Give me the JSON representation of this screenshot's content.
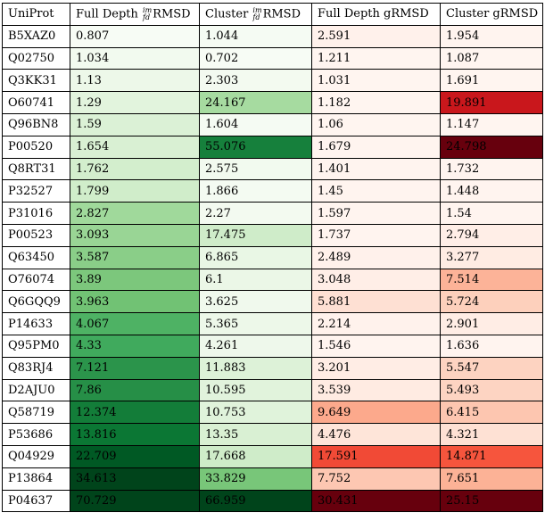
{
  "table": {
    "headers": [
      {
        "pre": "UniProt",
        "sup": "",
        "sub": "",
        "post": ""
      },
      {
        "pre": "Full Depth ",
        "sup": "im",
        "sub": "fd",
        "post": "RMSD"
      },
      {
        "pre": "Cluster ",
        "sup": "im",
        "sub": "fd",
        "post": "RMSD"
      },
      {
        "pre": "Full Depth gRMSD",
        "sup": "",
        "sub": "",
        "post": ""
      },
      {
        "pre": "Cluster gRMSD",
        "sup": "",
        "sub": "",
        "post": ""
      }
    ],
    "rows": [
      {
        "id": "B5XAZ0",
        "v": [
          "0.807",
          "1.044",
          "2.591",
          "1.954"
        ],
        "c": [
          "#f7fcf5",
          "#f5fbf3",
          "#fff1eb",
          "#fff4ef"
        ]
      },
      {
        "id": "Q02750",
        "v": [
          "1.034",
          "0.702",
          "1.211",
          "1.087"
        ],
        "c": [
          "#f2faef",
          "#f7fcf5",
          "#fff5f0",
          "#fff5f0"
        ]
      },
      {
        "id": "Q3KK31",
        "v": [
          "1.13",
          "2.303",
          "1.031",
          "1.691"
        ],
        "c": [
          "#edf8e9",
          "#f3faf0",
          "#fff5f0",
          "#fff5f0"
        ]
      },
      {
        "id": "O60741",
        "v": [
          "1.29",
          "24.167",
          "1.182",
          "19.891"
        ],
        "c": [
          "#e2f4dd",
          "#a6dba0",
          "#fff5f0",
          "#c9171c"
        ]
      },
      {
        "id": "Q96BN8",
        "v": [
          "1.59",
          "1.604",
          "1.06",
          "1.147"
        ],
        "c": [
          "#dbf1d6",
          "#f5fbf3",
          "#fff5f0",
          "#fff5f0"
        ]
      },
      {
        "id": "P00520",
        "v": [
          "1.654",
          "55.076",
          "1.679",
          "24.798"
        ],
        "c": [
          "#d9f0d3",
          "#16803c",
          "#fff4ef",
          "#67000d"
        ]
      },
      {
        "id": "Q8RT31",
        "v": [
          "1.762",
          "2.575",
          "1.401",
          "1.732"
        ],
        "c": [
          "#d3eecd",
          "#f2faef",
          "#fff4ef",
          "#fff4ef"
        ]
      },
      {
        "id": "P32527",
        "v": [
          "1.799",
          "1.866",
          "1.45",
          "1.448"
        ],
        "c": [
          "#d0edca",
          "#f4fbf2",
          "#fff4ef",
          "#fff4ef"
        ]
      },
      {
        "id": "P31016",
        "v": [
          "2.827",
          "2.27",
          "1.597",
          "1.54"
        ],
        "c": [
          "#a0d99b",
          "#f3faf0",
          "#fff4ef",
          "#fff4ef"
        ]
      },
      {
        "id": "P00523",
        "v": [
          "3.093",
          "17.475",
          "1.737",
          "2.794"
        ],
        "c": [
          "#99d595",
          "#cfecc9",
          "#fff4ef",
          "#ffeee7"
        ]
      },
      {
        "id": "Q63450",
        "v": [
          "3.587",
          "6.865",
          "2.489",
          "3.277"
        ],
        "c": [
          "#8ace88",
          "#e9f7e5",
          "#fff1eb",
          "#ffece3"
        ]
      },
      {
        "id": "O76074",
        "v": [
          "3.89",
          "6.1",
          "3.048",
          "7.514"
        ],
        "c": [
          "#7cc77c",
          "#ebf7e7",
          "#ffeee7",
          "#fcb398"
        ]
      },
      {
        "id": "Q6GQQ9",
        "v": [
          "3.963",
          "3.625",
          "5.881",
          "5.724"
        ],
        "c": [
          "#71c274",
          "#f0f9ed",
          "#fee0d3",
          "#fdd0bc"
        ]
      },
      {
        "id": "P14633",
        "v": [
          "4.067",
          "5.365",
          "2.214",
          "2.901"
        ],
        "c": [
          "#4eb264",
          "#edf8e9",
          "#fff2ec",
          "#ffede5"
        ]
      },
      {
        "id": "Q95PM0",
        "v": [
          "4.33",
          "4.261",
          "1.546",
          "1.636"
        ],
        "c": [
          "#40aa5d",
          "#eef8eb",
          "#fff4ef",
          "#fff4ef"
        ]
      },
      {
        "id": "Q83RJ4",
        "v": [
          "7.121",
          "11.883",
          "3.201",
          "5.547"
        ],
        "c": [
          "#2b944b",
          "#ddf2d8",
          "#ffede5",
          "#fdd3c1"
        ]
      },
      {
        "id": "D2AJU0",
        "v": [
          "7.86",
          "10.595",
          "3.539",
          "5.493"
        ],
        "c": [
          "#268f47",
          "#e1f3dc",
          "#ffebe2",
          "#fdd4c2"
        ]
      },
      {
        "id": "Q58719",
        "v": [
          "12.374",
          "10.753",
          "9.649",
          "6.415"
        ],
        "c": [
          "#137d39",
          "#e0f3db",
          "#fca98c",
          "#fdc6b0"
        ]
      },
      {
        "id": "P53686",
        "v": [
          "13.816",
          "13.35",
          "4.476",
          "4.321"
        ],
        "c": [
          "#0b7734",
          "#d9f0d3",
          "#fee5d9",
          "#fee1d4"
        ]
      },
      {
        "id": "Q04929",
        "v": [
          "22.709",
          "17.668",
          "17.591",
          "14.871"
        ],
        "c": [
          "#005924",
          "#cfecc9",
          "#f14a36",
          "#f6553d"
        ]
      },
      {
        "id": "P13864",
        "v": [
          "34.613",
          "33.829",
          "7.752",
          "7.651"
        ],
        "c": [
          "#00441b",
          "#78c679",
          "#fdc7b2",
          "#fcb296"
        ]
      },
      {
        "id": "P04637",
        "v": [
          "70.729",
          "66.959",
          "30.431",
          "25.15"
        ],
        "c": [
          "#00441b",
          "#00441b",
          "#67000d",
          "#67000d"
        ]
      }
    ]
  }
}
